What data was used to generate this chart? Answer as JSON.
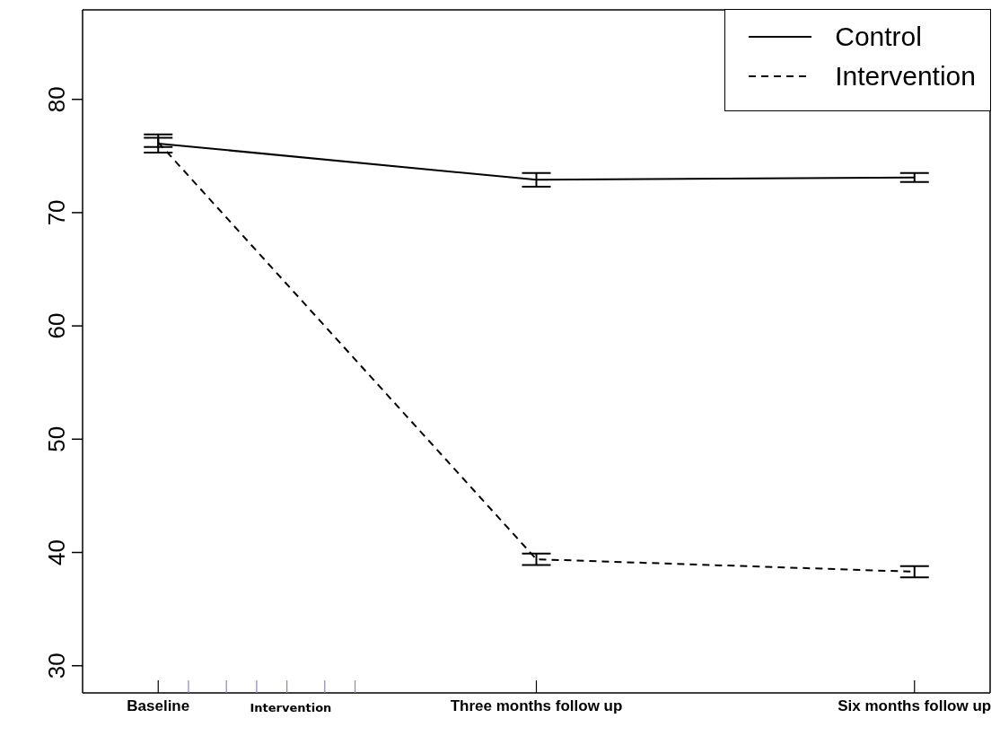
{
  "chart_data": {
    "type": "line",
    "categories": [
      "Baseline",
      "Three months follow up",
      "Six months follow up"
    ],
    "series": [
      {
        "name": "Control",
        "color": "#000000",
        "line_style": "solid",
        "values": [
          76.1,
          72.9,
          73.1
        ],
        "errors": [
          0.8,
          0.6,
          0.4
        ]
      },
      {
        "name": "Intervention",
        "color": "#000000",
        "line_style": "dashed",
        "values": [
          76.2,
          39.4,
          38.3
        ],
        "errors": [
          0.4,
          0.5,
          0.5
        ]
      }
    ],
    "annotations": [
      "Intervention"
    ],
    "ylim": [
      27.6,
      87.9
    ],
    "yticks": [
      30,
      40,
      50,
      60,
      70,
      80
    ],
    "grid": false,
    "legend": "top right",
    "marker": "none"
  }
}
